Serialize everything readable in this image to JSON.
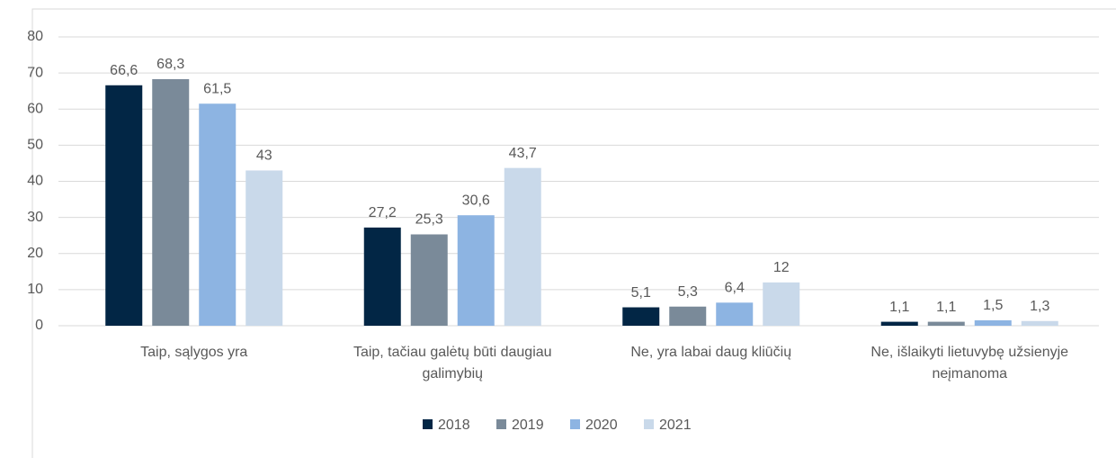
{
  "chart_data": {
    "type": "bar",
    "categories": [
      "Taip, sąlygos yra",
      "Taip, tačiau galėtų būti daugiau galimybių",
      "Ne, yra labai daug kliūčių",
      "Ne, išlaikyti lietuvybę užsienyje neįmanoma"
    ],
    "series": [
      {
        "name": "2018",
        "color": "#022645",
        "values": [
          66.6,
          27.2,
          5.1,
          1.1
        ],
        "value_labels": [
          "66,6",
          "27,2",
          "5,1",
          "1,1"
        ]
      },
      {
        "name": "2019",
        "color": "#7a8a99",
        "values": [
          68.3,
          25.3,
          5.3,
          1.1
        ],
        "value_labels": [
          "68,3",
          "25,3",
          "5,3",
          "1,1"
        ]
      },
      {
        "name": "2020",
        "color": "#8db4e2",
        "values": [
          61.5,
          30.6,
          6.4,
          1.5
        ],
        "value_labels": [
          "61,5",
          "30,6",
          "6,4",
          "1,5"
        ]
      },
      {
        "name": "2021",
        "color": "#c9d9ea",
        "values": [
          43,
          43.7,
          12,
          1.3
        ],
        "value_labels": [
          "43",
          "43,7",
          "12",
          "1,3"
        ]
      }
    ],
    "ylim": [
      0,
      80
    ],
    "yticks": [
      0,
      10,
      20,
      30,
      40,
      50,
      60,
      70,
      80
    ],
    "grid": true,
    "legend": "bottom"
  }
}
